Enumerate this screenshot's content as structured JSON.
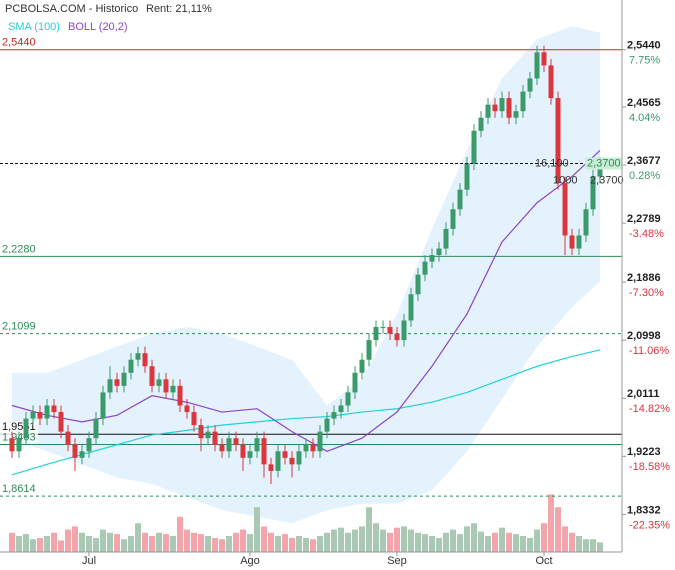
{
  "chart_data": {
    "type": "candlestick",
    "title": "PCBOLSA.COM - Historico",
    "subtitle": "Rent: 21,11%",
    "ylim": [
      1.776,
      2.62
    ],
    "yticks": [
      {
        "value": 2.544,
        "label": "2,5440"
      },
      {
        "value": 2.4565,
        "label": "2,4565"
      },
      {
        "value": 2.3677,
        "label": "2,3677"
      },
      {
        "value": 2.2789,
        "label": "2,2789"
      },
      {
        "value": 2.1886,
        "label": "2,1886"
      },
      {
        "value": 2.0998,
        "label": "2,0998"
      },
      {
        "value": 2.0111,
        "label": "2,0111"
      },
      {
        "value": 1.9223,
        "label": "1,9223"
      },
      {
        "value": 1.8332,
        "label": "1,8332"
      }
    ],
    "pct_labels": [
      "7.75%",
      "4.04%",
      "0.28%",
      "-3.48%",
      "-7.30%",
      "-11.06%",
      "-14.82%",
      "-18.58%",
      "-22.35%"
    ],
    "xlabels": [
      {
        "label": "Jul",
        "index": 11
      },
      {
        "label": "Ago",
        "index": 34
      },
      {
        "label": "Sep",
        "index": 55
      },
      {
        "label": "Oct",
        "index": 76
      }
    ],
    "up_color": "#3a9a6a",
    "down_color": "#d9363e",
    "open": [
      1.95,
      1.93,
      1.95,
      1.98,
      1.99,
      1.98,
      2.0,
      1.99,
      1.96,
      1.94,
      1.92,
      1.93,
      1.95,
      1.98,
      2.02,
      2.04,
      2.03,
      2.05,
      2.07,
      2.08,
      2.06,
      2.03,
      2.04,
      2.02,
      2.03,
      2.0,
      1.99,
      1.97,
      1.95,
      1.96,
      1.94,
      1.93,
      1.95,
      1.94,
      1.92,
      1.93,
      1.95,
      1.91,
      1.9,
      1.93,
      1.92,
      1.91,
      1.93,
      1.94,
      1.93,
      1.96,
      1.98,
      1.99,
      2.0,
      2.02,
      2.05,
      2.07,
      2.1,
      2.12,
      2.12,
      2.11,
      2.1,
      2.13,
      2.17,
      2.2,
      2.22,
      2.23,
      2.24,
      2.27,
      2.3,
      2.33,
      2.37,
      2.42,
      2.44,
      2.46,
      2.45,
      2.47,
      2.44,
      2.45,
      2.48,
      2.5,
      2.54,
      2.52,
      2.47,
      2.34,
      2.26,
      2.24,
      2.26,
      2.3,
      2.35
    ],
    "high": [
      1.96,
      1.96,
      1.99,
      2.0,
      2.0,
      2.01,
      2.01,
      2.0,
      1.97,
      1.95,
      1.94,
      1.96,
      1.99,
      2.03,
      2.06,
      2.05,
      2.06,
      2.08,
      2.09,
      2.09,
      2.07,
      2.05,
      2.05,
      2.04,
      2.04,
      2.01,
      2.0,
      1.98,
      1.97,
      1.97,
      1.95,
      1.96,
      1.96,
      1.95,
      1.94,
      1.96,
      1.96,
      1.92,
      1.94,
      1.94,
      1.93,
      1.94,
      1.95,
      1.95,
      1.97,
      1.99,
      2.0,
      2.01,
      2.03,
      2.06,
      2.08,
      2.11,
      2.13,
      2.13,
      2.13,
      2.12,
      2.14,
      2.18,
      2.21,
      2.23,
      2.24,
      2.25,
      2.28,
      2.31,
      2.34,
      2.38,
      2.43,
      2.45,
      2.47,
      2.47,
      2.48,
      2.48,
      2.46,
      2.49,
      2.51,
      2.55,
      2.55,
      2.53,
      2.48,
      2.35,
      2.27,
      2.27,
      2.31,
      2.36,
      2.38
    ],
    "low": [
      1.92,
      1.92,
      1.94,
      1.97,
      1.97,
      1.97,
      1.98,
      1.95,
      1.93,
      1.9,
      1.91,
      1.92,
      1.94,
      1.97,
      2.01,
      2.02,
      2.02,
      2.04,
      2.06,
      2.05,
      2.02,
      2.02,
      2.01,
      2.01,
      1.99,
      1.98,
      1.96,
      1.93,
      1.94,
      1.93,
      1.92,
      1.92,
      1.93,
      1.9,
      1.91,
      1.92,
      1.89,
      1.88,
      1.89,
      1.91,
      1.89,
      1.9,
      1.92,
      1.92,
      1.92,
      1.95,
      1.97,
      1.98,
      1.99,
      2.01,
      2.04,
      2.06,
      2.09,
      2.11,
      2.1,
      2.09,
      2.09,
      2.12,
      2.16,
      2.19,
      2.21,
      2.22,
      2.23,
      2.26,
      2.29,
      2.32,
      2.36,
      2.41,
      2.43,
      2.44,
      2.44,
      2.43,
      2.43,
      2.44,
      2.47,
      2.49,
      2.51,
      2.46,
      2.33,
      2.23,
      2.23,
      2.23,
      2.25,
      2.29,
      2.34
    ],
    "close": [
      1.93,
      1.95,
      1.98,
      1.99,
      1.98,
      2.0,
      1.99,
      1.96,
      1.94,
      1.92,
      1.93,
      1.95,
      1.98,
      2.02,
      2.04,
      2.03,
      2.05,
      2.07,
      2.08,
      2.06,
      2.03,
      2.04,
      2.02,
      2.03,
      2.0,
      1.99,
      1.97,
      1.95,
      1.96,
      1.94,
      1.93,
      1.95,
      1.94,
      1.92,
      1.93,
      1.95,
      1.91,
      1.9,
      1.93,
      1.92,
      1.91,
      1.93,
      1.94,
      1.93,
      1.96,
      1.98,
      1.99,
      2.0,
      2.02,
      2.05,
      2.07,
      2.1,
      2.12,
      2.12,
      2.11,
      2.1,
      2.13,
      2.17,
      2.2,
      2.22,
      2.23,
      2.24,
      2.27,
      2.3,
      2.33,
      2.37,
      2.42,
      2.44,
      2.46,
      2.45,
      2.47,
      2.44,
      2.45,
      2.48,
      2.5,
      2.54,
      2.52,
      2.47,
      2.34,
      2.26,
      2.24,
      2.26,
      2.3,
      2.35,
      2.37
    ],
    "volume": [
      30,
      25,
      28,
      20,
      22,
      25,
      30,
      18,
      35,
      40,
      30,
      25,
      22,
      35,
      30,
      28,
      20,
      25,
      45,
      30,
      25,
      30,
      28,
      25,
      55,
      35,
      30,
      28,
      25,
      22,
      20,
      25,
      30,
      35,
      28,
      70,
      40,
      30,
      25,
      28,
      22,
      25,
      22,
      20,
      25,
      30,
      35,
      38,
      30,
      35,
      40,
      70,
      45,
      35,
      30,
      38,
      40,
      35,
      30,
      28,
      25,
      22,
      30,
      35,
      28,
      40,
      45,
      32,
      25,
      30,
      38,
      30,
      28,
      25,
      22,
      35,
      45,
      90,
      70,
      40,
      30,
      25,
      20,
      20,
      15
    ],
    "vlim": [
      0,
      100
    ],
    "sma": {
      "name": "SMA (100)",
      "color": "#22d3d3",
      "x": [
        0,
        5,
        10,
        15,
        20,
        25,
        30,
        35,
        40,
        45,
        50,
        55,
        60,
        65,
        70,
        75,
        80,
        84
      ],
      "values": [
        1.894,
        1.91,
        1.925,
        1.94,
        1.955,
        1.962,
        1.97,
        1.975,
        1.98,
        1.983,
        1.99,
        1.995,
        2.005,
        2.02,
        2.04,
        2.06,
        2.075,
        2.085
      ]
    },
    "boll": {
      "name": "BOLL (20,2)",
      "color": "#8e44c8",
      "band_color": "#e3f2fc",
      "x": [
        0,
        5,
        10,
        15,
        20,
        25,
        30,
        35,
        40,
        45,
        50,
        55,
        60,
        65,
        70,
        75,
        80,
        84
      ],
      "mid": [
        2.0,
        1.985,
        1.975,
        1.985,
        2.015,
        2.005,
        1.99,
        1.995,
        1.96,
        1.93,
        1.95,
        1.99,
        2.06,
        2.14,
        2.25,
        2.31,
        2.35,
        2.39
      ],
      "upper": [
        2.05,
        2.05,
        2.07,
        2.09,
        2.11,
        2.12,
        2.11,
        2.09,
        2.07,
        2.0,
        2.04,
        2.14,
        2.27,
        2.39,
        2.5,
        2.56,
        2.58,
        2.57
      ],
      "lower": [
        1.95,
        1.93,
        1.91,
        1.89,
        1.88,
        1.86,
        1.84,
        1.83,
        1.82,
        1.84,
        1.85,
        1.85,
        1.87,
        1.93,
        2.01,
        2.09,
        2.15,
        2.19
      ]
    },
    "levels": [
      {
        "value": 2.544,
        "label": "2,5440",
        "color": "#c62828",
        "dash": false
      },
      {
        "value": 2.228,
        "label": "2,2280",
        "color": "#2e8b57",
        "dash": false
      },
      {
        "value": 2.1099,
        "label": "2,1099",
        "color": "#2e8b57",
        "dash": true
      },
      {
        "value": 1.9561,
        "label": "1,9561",
        "color": "#111111",
        "dash": false
      },
      {
        "value": 1.9403,
        "label": "1,9403",
        "color": "#2e8b57",
        "dash": false
      },
      {
        "value": 1.8614,
        "label": "1,8614",
        "color": "#2e8b57",
        "dash": true
      }
    ],
    "last": {
      "value": 2.37,
      "label": "2,3700"
    },
    "annotations": [
      "16,100",
      "1000",
      "2,3700"
    ]
  }
}
